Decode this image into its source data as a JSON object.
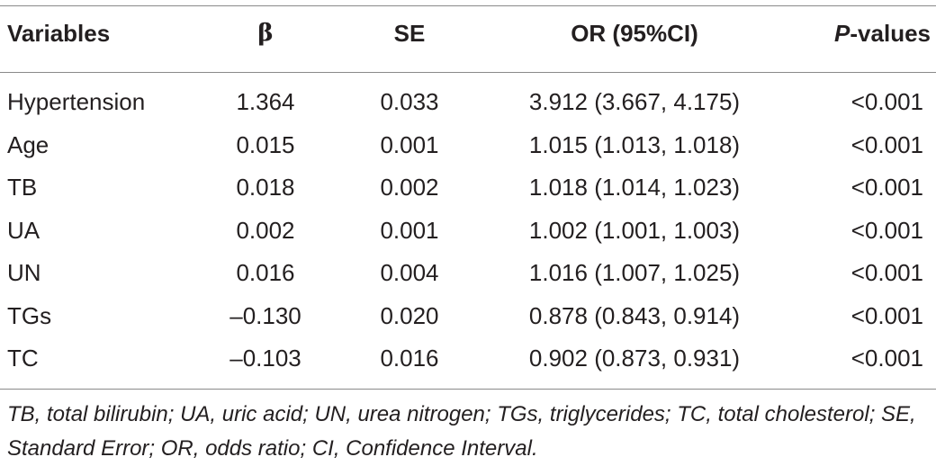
{
  "table": {
    "headers": {
      "variables": "Variables",
      "beta": "β",
      "se": "SE",
      "or": "OR (95%CI)",
      "p_italic": "P",
      "p_rest": "-values"
    },
    "rows": [
      {
        "variable": "Hypertension",
        "beta": "1.364",
        "se": "0.033",
        "or": "3.912 (3.667, 4.175)",
        "p": "<0.001"
      },
      {
        "variable": "Age",
        "beta": "0.015",
        "se": "0.001",
        "or": "1.015 (1.013, 1.018)",
        "p": "<0.001"
      },
      {
        "variable": "TB",
        "beta": "0.018",
        "se": "0.002",
        "or": "1.018 (1.014, 1.023)",
        "p": "<0.001"
      },
      {
        "variable": "UA",
        "beta": "0.002",
        "se": "0.001",
        "or": "1.002 (1.001, 1.003)",
        "p": "<0.001"
      },
      {
        "variable": "UN",
        "beta": "0.016",
        "se": "0.004",
        "or": "1.016 (1.007, 1.025)",
        "p": "<0.001"
      },
      {
        "variable": "TGs",
        "beta": "–0.130",
        "se": "0.020",
        "or": "0.878 (0.843, 0.914)",
        "p": "<0.001"
      },
      {
        "variable": "TC",
        "beta": "–0.103",
        "se": "0.016",
        "or": "0.902 (0.873, 0.931)",
        "p": "<0.001"
      }
    ],
    "footnote": "TB, total bilirubin; UA, uric acid; UN, urea nitrogen; TGs, triglycerides; TC, total cholesterol; SE, Standard Error; OR, odds ratio; CI, Confidence Interval."
  }
}
